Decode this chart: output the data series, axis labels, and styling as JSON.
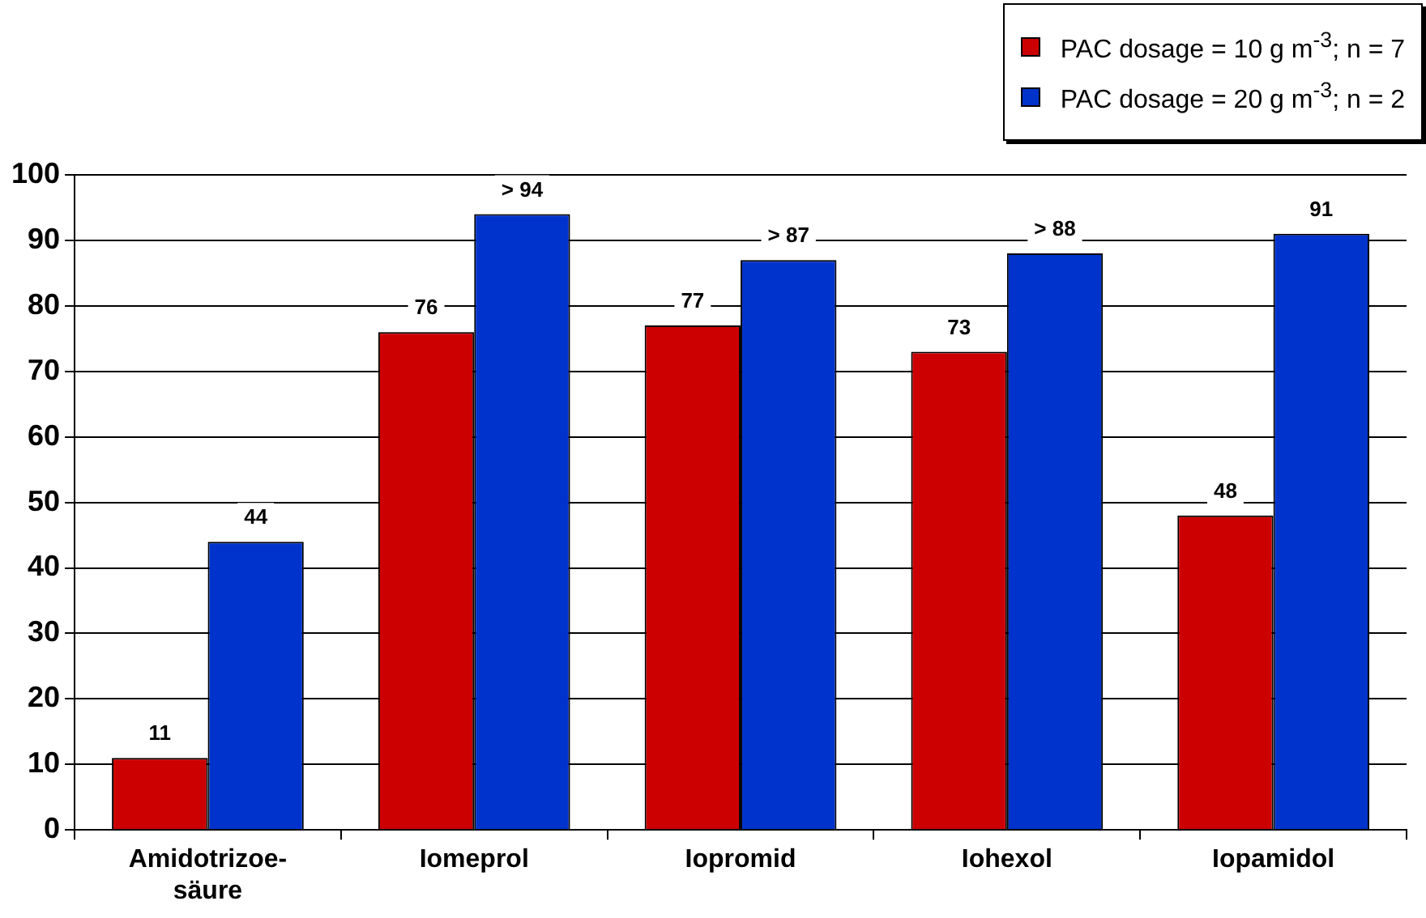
{
  "chart_data": {
    "type": "bar",
    "categories": [
      "Amidotrizoe-\nsäure",
      "Iomeprol",
      "Iopromid",
      "Iohexol",
      "Iopamidol"
    ],
    "series": [
      {
        "name": "PAC dosage = 10 g m$^{-3}$; n = 7",
        "color": "#cc0000",
        "values": [
          11,
          76,
          77,
          73,
          48
        ],
        "value_labels": [
          "11",
          "76",
          "77",
          "73",
          "48"
        ]
      },
      {
        "name": "PAC dosage = 20 g m$^{-3}$; n = 2",
        "color": "#0033cc",
        "values": [
          44,
          94,
          87,
          88,
          91
        ],
        "value_labels": [
          "44",
          "> 94",
          "> 87",
          "> 88",
          "91"
        ]
      }
    ],
    "ylim": [
      0,
      100
    ],
    "yticks": [
      0,
      10,
      20,
      30,
      40,
      50,
      60,
      70,
      80,
      90,
      100
    ],
    "grid": "y",
    "legend": "top right"
  }
}
